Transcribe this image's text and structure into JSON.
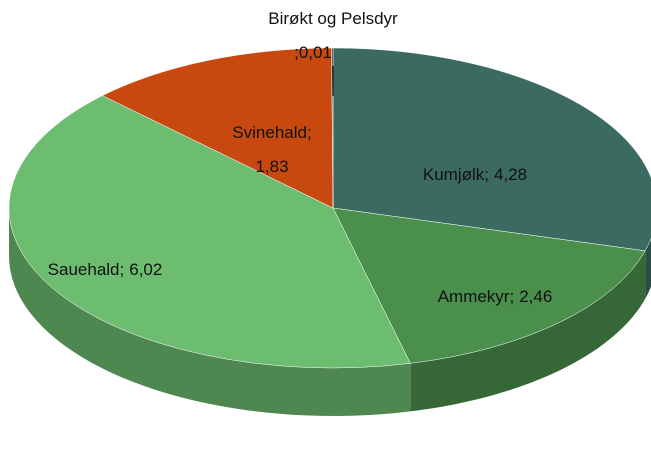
{
  "chart_data": {
    "type": "pie",
    "categories": [
      "Kumjølk",
      "Ammekyr",
      "Sauehald",
      "Svinehald",
      "Birøkt og Pelsdyr"
    ],
    "values": [
      4.28,
      2.46,
      6.02,
      1.83,
      0.01
    ],
    "value_labels": [
      "4,28",
      "2,46",
      "6,02",
      "1,83",
      "0,01"
    ],
    "label_separator": ";",
    "colors": [
      "#3b6b60",
      "#4a8f4c",
      "#6cbd6f",
      "#c8490f",
      "#3a3a3a"
    ]
  }
}
